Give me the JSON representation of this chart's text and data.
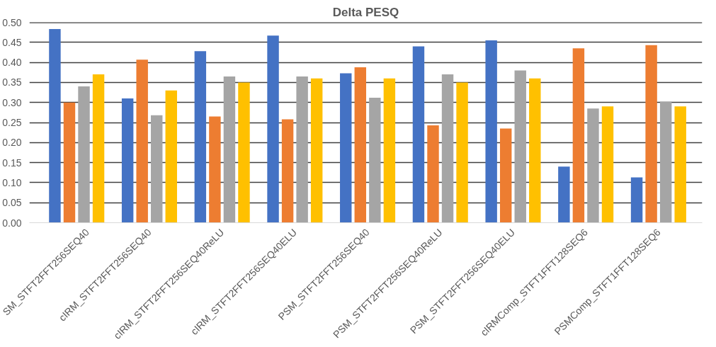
{
  "chart_data": {
    "type": "bar",
    "title": "Delta PESQ",
    "categories": [
      "SM_STFT2FFT256SEQ40",
      "cIRM_STFT2FFT256SEQ40",
      "cIRM_STFT2FFT256SEQ40ReLU",
      "cIRM_STFT2FFT256SEQ40ELU",
      "PSM_STFT2FFT256SEQ40",
      "PSM_STFT2FFT256SEQ40ReLU",
      "PSM_STFT2FFT256SEQ40ELU",
      "cIRMComp_STFT1FFT128SEQ6",
      "PSMComp_STFT1FFT128SEQ6"
    ],
    "series": [
      {
        "color": "#4472c4",
        "values": [
          0.483,
          0.31,
          0.428,
          0.467,
          0.373,
          0.44,
          0.455,
          0.14,
          0.113
        ]
      },
      {
        "color": "#ed7d31",
        "values": [
          0.3,
          0.407,
          0.265,
          0.258,
          0.388,
          0.243,
          0.235,
          0.435,
          0.443
        ]
      },
      {
        "color": "#a5a5a5",
        "values": [
          0.34,
          0.268,
          0.365,
          0.365,
          0.312,
          0.37,
          0.38,
          0.285,
          0.302
        ]
      },
      {
        "color": "#ffc000",
        "values": [
          0.37,
          0.33,
          0.35,
          0.36,
          0.36,
          0.35,
          0.36,
          0.29,
          0.29
        ]
      }
    ],
    "ylim": [
      0,
      0.5
    ],
    "yticks": [
      {
        "value": 0,
        "label": "0.00"
      },
      {
        "value": 0.05,
        "label": "0.05"
      },
      {
        "value": 0.1,
        "label": "0.10"
      },
      {
        "value": 0.15,
        "label": "0.15"
      },
      {
        "value": 0.2,
        "label": "0.20"
      },
      {
        "value": 0.25,
        "label": "0.25"
      },
      {
        "value": 0.3,
        "label": "0.30"
      },
      {
        "value": 0.35,
        "label": "0.35"
      },
      {
        "value": 0.4,
        "label": "0.40"
      },
      {
        "value": 0.45,
        "label": "0.45"
      },
      {
        "value": 0.5,
        "label": "0.50"
      }
    ],
    "grid": "y"
  }
}
